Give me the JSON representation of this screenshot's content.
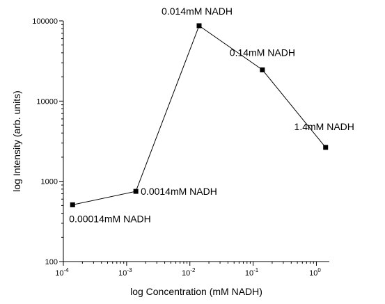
{
  "chart_data": {
    "type": "scatter",
    "xlabel": "log Concentration (mM NADH)",
    "ylabel": "log Intensity (arb. units)",
    "x_scale": "log",
    "y_scale": "log",
    "xlim": [
      0.0001,
      1.6
    ],
    "ylim": [
      100,
      100000
    ],
    "grid": false,
    "x_ticks": [
      {
        "base": "10",
        "exp": "-4"
      },
      {
        "base": "10",
        "exp": "-3"
      },
      {
        "base": "10",
        "exp": "-2"
      },
      {
        "base": "10",
        "exp": "-1"
      },
      {
        "base": "10",
        "exp": "0"
      }
    ],
    "y_ticks": [
      "100",
      "1000",
      "10000",
      "100000"
    ],
    "series": [
      {
        "points": [
          {
            "x": 0.00014,
            "y": 510,
            "label": "0.00014mM NADH"
          },
          {
            "x": 0.0014,
            "y": 750,
            "label": "0.0014mM NADH"
          },
          {
            "x": 0.014,
            "y": 87000,
            "label": "0.014mM NADH"
          },
          {
            "x": 0.14,
            "y": 24500,
            "label": "0.14mM NADH"
          },
          {
            "x": 1.4,
            "y": 2650,
            "label": "1.4mM NADH"
          }
        ]
      }
    ]
  }
}
